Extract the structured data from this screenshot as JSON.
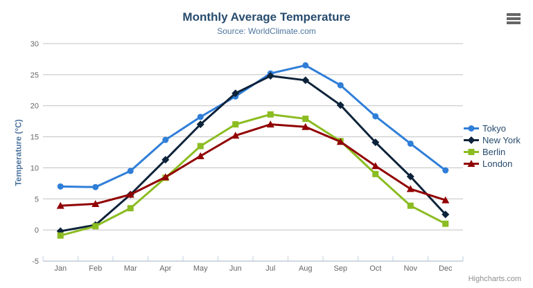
{
  "credits": "Highcharts.com",
  "chart_data": {
    "type": "line",
    "title": "Monthly Average Temperature",
    "subtitle": "Source: WorldClimate.com",
    "categories": [
      "Jan",
      "Feb",
      "Mar",
      "Apr",
      "May",
      "Jun",
      "Jul",
      "Aug",
      "Sep",
      "Oct",
      "Nov",
      "Dec"
    ],
    "series": [
      {
        "name": "Tokyo",
        "color": "#2f7ed8",
        "marker": "circle",
        "values": [
          7.0,
          6.9,
          9.5,
          14.5,
          18.2,
          21.5,
          25.2,
          26.5,
          23.3,
          18.3,
          13.9,
          9.6
        ]
      },
      {
        "name": "New York",
        "color": "#0d233a",
        "marker": "diamond",
        "values": [
          -0.2,
          0.8,
          5.7,
          11.3,
          17.0,
          22.0,
          24.8,
          24.1,
          20.1,
          14.1,
          8.6,
          2.5
        ]
      },
      {
        "name": "Berlin",
        "color": "#8bbc21",
        "marker": "square",
        "values": [
          -0.9,
          0.6,
          3.5,
          8.4,
          13.5,
          17.0,
          18.6,
          17.9,
          14.3,
          9.0,
          3.9,
          1.0
        ]
      },
      {
        "name": "London",
        "color": "#910000",
        "marker": "triangle",
        "values": [
          3.9,
          4.2,
          5.7,
          8.5,
          11.9,
          15.2,
          17.0,
          16.6,
          14.2,
          10.3,
          6.6,
          4.8
        ]
      }
    ],
    "xlabel": "",
    "ylabel": "Temperature (°C)",
    "ylim": [
      -5,
      30
    ],
    "ytick_step": 5,
    "grid": true,
    "legend_position": "right",
    "colors": {
      "background": "#ffffff",
      "grid": "#c0c0c0",
      "axis_line": "#c0d0e0",
      "axis_label": "#666666",
      "title": "#274b6d",
      "subtitle": "#4d759e",
      "axis_title": "#4d759e",
      "legend_text": "#274b6d",
      "credits": "#909090",
      "menu_icon": "#666666"
    }
  }
}
